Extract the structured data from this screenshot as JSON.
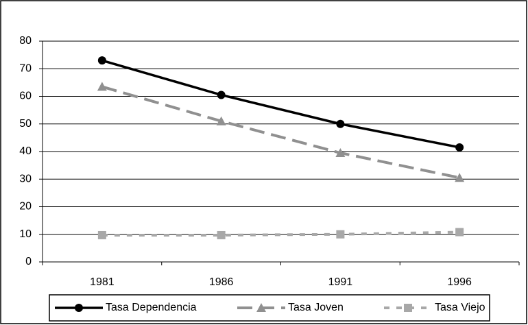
{
  "chart_data": {
    "type": "line",
    "categories": [
      "1981",
      "1986",
      "1991",
      "1996"
    ],
    "series": [
      {
        "name": "Tasa Dependencia",
        "color": "#000000",
        "line_style": "solid",
        "marker": "circle",
        "values": [
          73,
          60.5,
          50,
          41.5
        ]
      },
      {
        "name": "Tasa Joven",
        "color": "#909090",
        "line_style": "dashed",
        "marker": "triangle",
        "values": [
          63.5,
          51,
          39.5,
          30.5
        ]
      },
      {
        "name": "Tasa Viejo",
        "color": "#a8a8a8",
        "line_style": "dotted",
        "marker": "square",
        "values": [
          9.7,
          9.7,
          10,
          10.8
        ]
      }
    ],
    "ylim": [
      0,
      80
    ],
    "yticks": [
      0,
      10,
      20,
      30,
      40,
      50,
      60,
      70,
      80
    ],
    "grid": true,
    "legend": "bottom"
  }
}
